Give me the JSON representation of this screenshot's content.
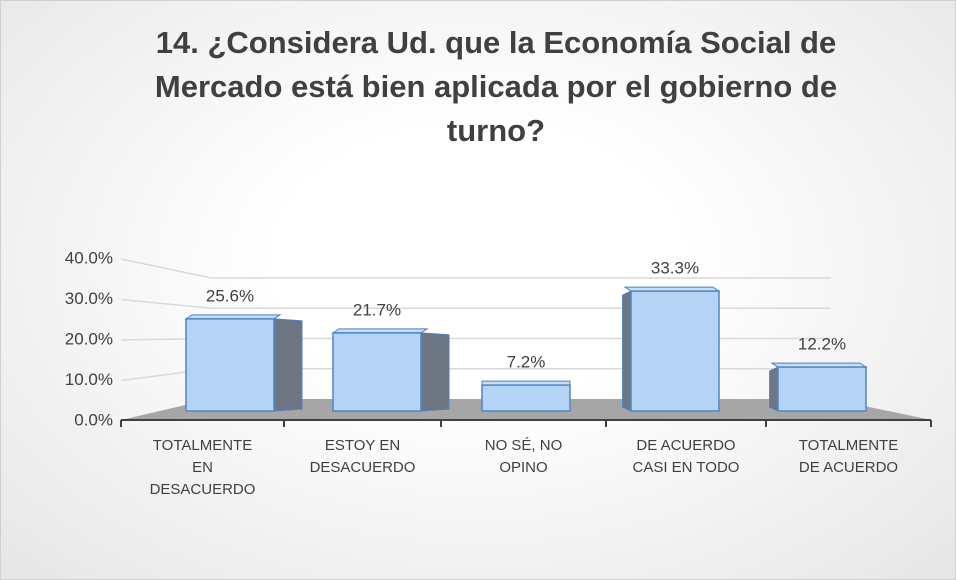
{
  "chart_data": {
    "type": "bar3d",
    "title": "14. ¿Considera Ud. que la Economía Social de Mercado está bien aplicada por el gobierno de turno?",
    "categories": [
      "TOTALMENTE EN DESACUERDO",
      "ESTOY EN DESACUERDO",
      "NO SÉ, NO OPINO",
      "DE ACUERDO CASI EN TODO",
      "TOTALMENTE DE ACUERDO"
    ],
    "values": [
      25.6,
      21.7,
      7.2,
      33.3,
      12.2
    ],
    "value_labels": [
      "25.6%",
      "21.7%",
      "7.2%",
      "33.3%",
      "12.2%"
    ],
    "color": "#b4d3f5",
    "ylim": [
      0,
      40
    ],
    "yticks": [
      {
        "value": 0,
        "label": "0.0%"
      },
      {
        "value": 10,
        "label": "10.0%"
      },
      {
        "value": 20,
        "label": "20.0%"
      },
      {
        "value": 30,
        "label": "30.0%"
      },
      {
        "value": 40,
        "label": "40.0%"
      }
    ],
    "grid": true
  }
}
